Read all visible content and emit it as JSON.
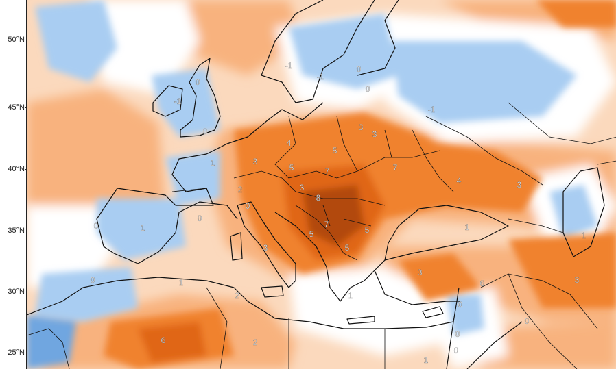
{
  "map": {
    "lat_labels": [
      "50°N",
      "45°N",
      "40°N",
      "35°N",
      "30°N",
      "25°N"
    ],
    "anomaly_labels": [
      "0",
      "-1",
      "0",
      "-1",
      "-1",
      "0",
      "0",
      "-1",
      "1",
      "3",
      "4",
      "5",
      "3",
      "3",
      "3",
      "5",
      "7",
      "7",
      "4",
      "2",
      "0",
      "3",
      "8",
      "1",
      "0",
      "1",
      "7",
      "5",
      "5",
      "5",
      "3",
      "3",
      "6",
      "3",
      "0",
      "0",
      "1",
      "1",
      "2",
      "2",
      "6",
      "1",
      "0",
      "0",
      "0",
      "0",
      "1"
    ],
    "palette": {
      "deep_blue": "#6fa6e0",
      "blue": "#a9cdf2",
      "light_blue": "#d6e8fb",
      "white": "#ffffff",
      "light_orange": "#fbd9bd",
      "orange": "#f8b27e",
      "deep_orange": "#f0822f",
      "red_orange": "#e06612",
      "brown": "#b24a0f"
    }
  }
}
